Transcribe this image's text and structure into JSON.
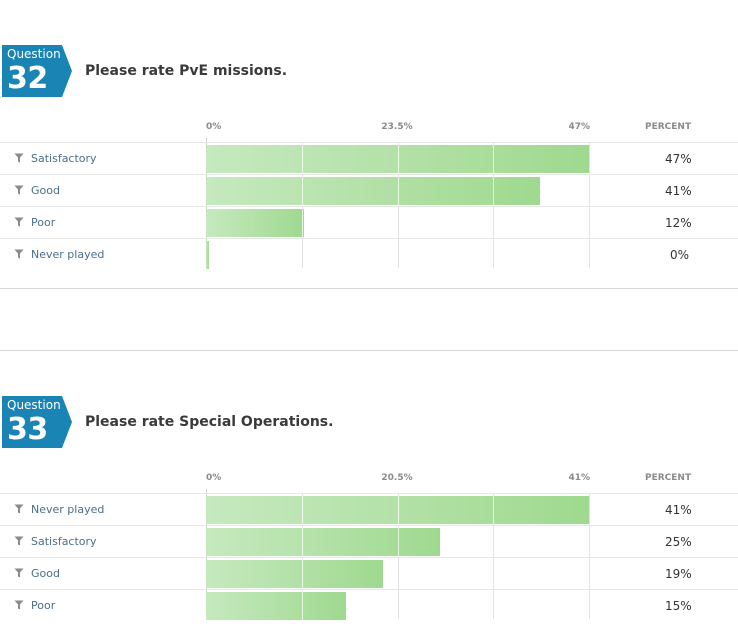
{
  "questions": [
    {
      "label": "Question",
      "number": "32",
      "title": "Please rate PvE missions.",
      "percent_header": "PERCENT",
      "ticks": [
        "0%",
        "23.5%",
        "47%"
      ]
    },
    {
      "label": "Question",
      "number": "33",
      "title": "Please rate Special Operations.",
      "percent_header": "PERCENT",
      "ticks": [
        "0%",
        "20.5%",
        "41%"
      ]
    }
  ],
  "colors": {
    "badge": "#1a84b4",
    "bar_start": "#c6e9bf",
    "bar_end": "#9fd98f",
    "label": "#4a6f8e"
  },
  "chart_data": [
    {
      "type": "bar",
      "title": "Please rate PvE missions.",
      "categories": [
        "Satisfactory",
        "Good",
        "Poor",
        "Never played"
      ],
      "values": [
        47,
        41,
        12,
        0
      ],
      "value_labels": [
        "47%",
        "41%",
        "12%",
        "0%"
      ],
      "xlim": [
        0,
        47
      ],
      "orientation": "horizontal"
    },
    {
      "type": "bar",
      "title": "Please rate Special Operations.",
      "categories": [
        "Never played",
        "Satisfactory",
        "Good",
        "Poor"
      ],
      "values": [
        41,
        25,
        19,
        15
      ],
      "value_labels": [
        "41%",
        "25%",
        "19%",
        "15%"
      ],
      "xlim": [
        0,
        41
      ],
      "orientation": "horizontal"
    }
  ]
}
